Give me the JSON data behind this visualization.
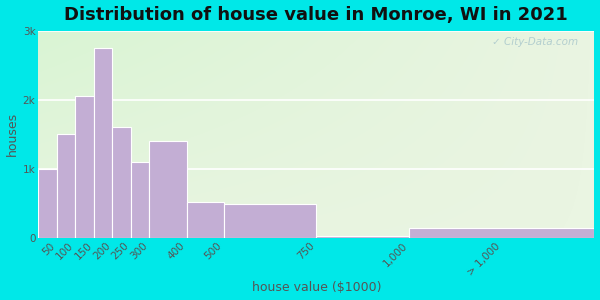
{
  "title": "Distribution of house value in Monroe, WI in 2021",
  "xlabel": "house value ($1000)",
  "ylabel": "houses",
  "bar_color": "#c3aed4",
  "bar_edge_color": "#ffffff",
  "background_outer": "#00e8e8",
  "background_inner": "#eaf5e2",
  "background_inner_right": "#e8f0e8",
  "bin_edges": [
    0,
    50,
    100,
    150,
    200,
    250,
    300,
    400,
    500,
    750,
    1000,
    1500
  ],
  "bin_labels": [
    "50",
    "100",
    "150",
    "200",
    "250",
    "300",
    "400",
    "500",
    "750",
    "1,000",
    "> 1,000"
  ],
  "values": [
    1000,
    1500,
    2050,
    2750,
    1600,
    1100,
    1400,
    520,
    490,
    30,
    150
  ],
  "ylim": [
    0,
    3000
  ],
  "yticks": [
    0,
    1000,
    2000,
    3000
  ],
  "ytick_labels": [
    "0",
    "1k",
    "2k",
    "3k"
  ],
  "title_fontsize": 13,
  "label_fontsize": 9,
  "tick_fontsize": 7.5,
  "watermark_text": "✓ City-Data.com"
}
